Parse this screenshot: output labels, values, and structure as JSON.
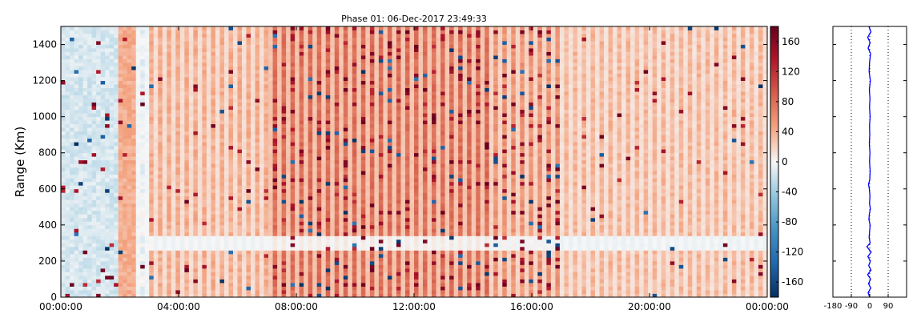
{
  "chart_data": [
    {
      "type": "heatmap",
      "title": "Phase 01: 06-Dec-2017 23:49:33",
      "xlabel": "",
      "ylabel": "Range (Km)",
      "x_ticks": [
        "00:00:00",
        "04:00:00",
        "08:00:00",
        "12:00:00",
        "16:00:00",
        "20:00:00",
        "00:00:00"
      ],
      "x_range_hours": [
        0,
        24
      ],
      "ylim": [
        0,
        1500
      ],
      "y_ticks": [
        0,
        200,
        400,
        600,
        800,
        1000,
        1200,
        1400
      ],
      "colorbar": {
        "range": [
          -180,
          180
        ],
        "ticks": [
          -160,
          -120,
          -80,
          -40,
          0,
          40,
          80,
          120,
          160
        ],
        "colormap": "diverging blue-white-red"
      },
      "column_bands": [
        {
          "start_hour": 0.0,
          "end_hour": 2.0,
          "typical_value": -15
        },
        {
          "start_hour": 2.0,
          "end_hour": 2.5,
          "typical_value": 40
        },
        {
          "start_hour": 2.5,
          "end_hour": 3.0,
          "typical_value": -5
        },
        {
          "start_hour": 3.0,
          "end_hour": 7.0,
          "typical_value": 40
        },
        {
          "start_hour": 7.0,
          "end_hour": 14.5,
          "typical_value": 80
        },
        {
          "start_hour": 14.5,
          "end_hour": 17.0,
          "typical_value": 55
        },
        {
          "start_hour": 17.0,
          "end_hour": 24.0,
          "typical_value": 35
        }
      ],
      "features": [
        {
          "description": "low-value band",
          "range_km": [
            330,
            370
          ],
          "hours": [
            0,
            2
          ]
        },
        {
          "description": "near-zero streak",
          "range_km": [
            250,
            330
          ],
          "hours": [
            3,
            24
          ]
        }
      ]
    },
    {
      "type": "line",
      "xlim": [
        -180,
        180
      ],
      "x_ticks": [
        -180,
        -90,
        0,
        90
      ],
      "ylim": [
        0,
        1500
      ],
      "reference_lines_x": [
        -90,
        0,
        90
      ],
      "series": [
        {
          "color": "#0000ff",
          "points": [
            [
              0,
              0
            ],
            [
              -8,
              25
            ],
            [
              5,
              50
            ],
            [
              -6,
              75
            ],
            [
              4,
              100
            ],
            [
              -10,
              125
            ],
            [
              6,
              150
            ],
            [
              -5,
              175
            ],
            [
              3,
              200
            ],
            [
              -9,
              225
            ],
            [
              7,
              250
            ],
            [
              -14,
              280
            ],
            [
              2,
              300
            ],
            [
              -3,
              330
            ],
            [
              -1,
              360
            ],
            [
              2,
              400
            ],
            [
              -4,
              430
            ],
            [
              -2,
              460
            ],
            [
              3,
              490
            ],
            [
              -1,
              520
            ],
            [
              1,
              560
            ],
            [
              -2,
              600
            ],
            [
              -6,
              625
            ],
            [
              0,
              650
            ],
            [
              2,
              700
            ],
            [
              -1,
              750
            ],
            [
              1,
              800
            ],
            [
              -2,
              850
            ],
            [
              0,
              900
            ],
            [
              -1,
              950
            ],
            [
              2,
              1000
            ],
            [
              -1,
              1050
            ],
            [
              1,
              1100
            ],
            [
              -2,
              1150
            ],
            [
              3,
              1200
            ],
            [
              -3,
              1250
            ],
            [
              -1,
              1300
            ],
            [
              4,
              1350
            ],
            [
              -8,
              1380
            ],
            [
              2,
              1410
            ],
            [
              -10,
              1440
            ],
            [
              6,
              1470
            ],
            [
              -4,
              1500
            ]
          ]
        }
      ]
    }
  ]
}
